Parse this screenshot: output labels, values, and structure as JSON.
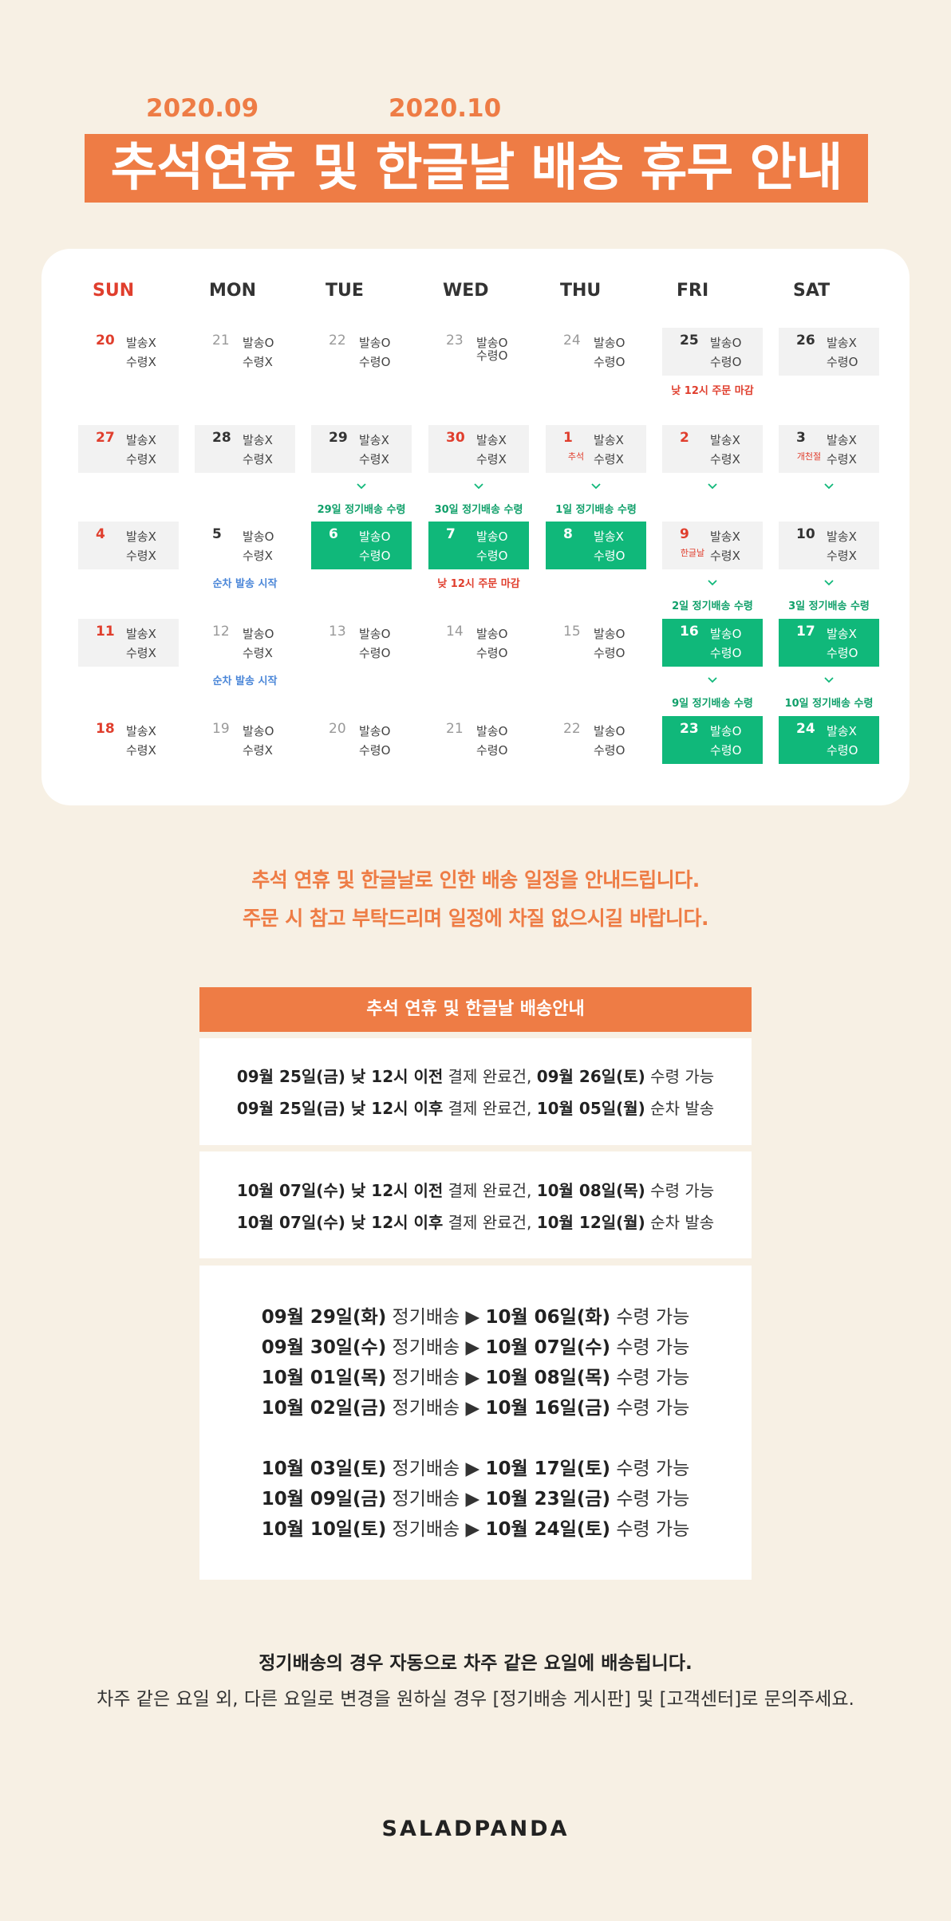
{
  "header": {
    "month_left": "2020.09",
    "month_right": "2020.10",
    "title": "추석연휴 및 한글날 배송 휴무 안내"
  },
  "calendar": {
    "weekdays": [
      "SUN",
      "MON",
      "TUE",
      "WED",
      "THU",
      "FRI",
      "SAT"
    ],
    "cells": [
      {
        "day": "20",
        "l1": "발송X",
        "l2": "수령X"
      },
      {
        "day": "21",
        "l1": "발송O",
        "l2": "수령X"
      },
      {
        "day": "22",
        "l1": "발송O",
        "l2": "수령O"
      },
      {
        "day": "23",
        "l1": "발송O",
        "l2": "수령O"
      },
      {
        "day": "24",
        "l1": "발송O",
        "l2": "수령O"
      },
      {
        "day": "25",
        "l1": "발송O",
        "l2": "수령O"
      },
      {
        "day": "26",
        "l1": "발송X",
        "l2": "수령O"
      },
      {
        "day": "27",
        "l1": "발송X",
        "l2": "수령X"
      },
      {
        "day": "28",
        "l1": "발송X",
        "l2": "수령X"
      },
      {
        "day": "29",
        "l1": "발송X",
        "l2": "수령X"
      },
      {
        "day": "30",
        "l1": "발송X",
        "l2": "수령X"
      },
      {
        "day": "1",
        "sub": "추석",
        "l1": "발송X",
        "l2": "수령X"
      },
      {
        "day": "2",
        "l1": "발송X",
        "l2": "수령X"
      },
      {
        "day": "3",
        "sub": "개천절",
        "l1": "발송X",
        "l2": "수령X"
      },
      {
        "day": "4",
        "l1": "발송X",
        "l2": "수령X"
      },
      {
        "day": "5",
        "l1": "발송O",
        "l2": "수령X"
      },
      {
        "day": "6",
        "l1": "발송O",
        "l2": "수령O"
      },
      {
        "day": "7",
        "l1": "발송O",
        "l2": "수령O"
      },
      {
        "day": "8",
        "l1": "발송X",
        "l2": "수령O"
      },
      {
        "day": "9",
        "sub": "한글날",
        "l1": "발송X",
        "l2": "수령X"
      },
      {
        "day": "10",
        "l1": "발송X",
        "l2": "수령X"
      },
      {
        "day": "11",
        "l1": "발송X",
        "l2": "수령X"
      },
      {
        "day": "12",
        "l1": "발송O",
        "l2": "수령X"
      },
      {
        "day": "13",
        "l1": "발송O",
        "l2": "수령O"
      },
      {
        "day": "14",
        "l1": "발송O",
        "l2": "수령O"
      },
      {
        "day": "15",
        "l1": "발송O",
        "l2": "수령O"
      },
      {
        "day": "16",
        "l1": "발송O",
        "l2": "수령O"
      },
      {
        "day": "17",
        "l1": "발송X",
        "l2": "수령O"
      },
      {
        "day": "18",
        "l1": "발송X",
        "l2": "수령X"
      },
      {
        "day": "19",
        "l1": "발송O",
        "l2": "수령X"
      },
      {
        "day": "20",
        "l1": "발송O",
        "l2": "수령O"
      },
      {
        "day": "21",
        "l1": "발송O",
        "l2": "수령O"
      },
      {
        "day": "22",
        "l1": "발송O",
        "l2": "수령O"
      },
      {
        "day": "23",
        "l1": "발송O",
        "l2": "수령O"
      },
      {
        "day": "24",
        "l1": "발송X",
        "l2": "수령O"
      }
    ],
    "notes": {
      "fri25_cutoff": "낮 12시 주문 마감",
      "reg_29": "29일 정기배송 수령",
      "reg_30": "30일 정기배송 수령",
      "reg_1": "1일 정기배송 수령",
      "mon5_start": "순차 발송 시작",
      "wed7_cutoff": "낮 12시 주문 마감",
      "reg_2": "2일 정기배송 수령",
      "reg_3": "3일 정기배송 수령",
      "mon12_start": "순차 발송 시작",
      "reg_9": "9일 정기배송 수령",
      "reg_10": "10일 정기배송 수령"
    }
  },
  "intro": {
    "line1": "추석 연휴 및 한글날로 인한 배송 일정을 안내드립니다.",
    "line2": "주문 시 참고 부탁드리며 일정에 차질 없으시길 바랍니다."
  },
  "info": {
    "heading": "추석 연휴 및 한글날 배송안내",
    "b1": [
      {
        "a": "09월 25일(금) 낮 12시 이전",
        "b": " 결제 완료건, ",
        "c": "09월 26일(토)",
        "d": " 수령 가능"
      },
      {
        "a": "09월 25일(금) 낮 12시 이후",
        "b": " 결제 완료건, ",
        "c": "10월 05일(월)",
        "d": " 순차 발송"
      }
    ],
    "b2": [
      {
        "a": "10월 07일(수) 낮 12시 이전",
        "b": " 결제 완료건, ",
        "c": "10월 08일(목)",
        "d": " 수령 가능"
      },
      {
        "a": "10월 07일(수) 낮 12시 이후",
        "b": " 결제 완료건, ",
        "c": "10월 12일(월)",
        "d": " 순차 발송"
      }
    ],
    "b3": [
      {
        "a": "09월 29일(화)",
        "b": " 정기배송 ▶ ",
        "c": "10월 06일(화)",
        "d": " 수령 가능"
      },
      {
        "a": "09월 30일(수)",
        "b": " 정기배송 ▶ ",
        "c": "10월 07일(수)",
        "d": " 수령 가능"
      },
      {
        "a": "10월 01일(목)",
        "b": " 정기배송 ▶ ",
        "c": "10월 08일(목)",
        "d": " 수령 가능"
      },
      {
        "a": "10월 02일(금)",
        "b": " 정기배송 ▶ ",
        "c": "10월 16일(금)",
        "d": " 수령 가능"
      },
      {
        "a": "10월 03일(토)",
        "b": " 정기배송 ▶ ",
        "c": "10월 17일(토)",
        "d": " 수령 가능"
      },
      {
        "a": "10월 09일(금)",
        "b": " 정기배송 ▶ ",
        "c": "10월 23일(금)",
        "d": " 수령 가능"
      },
      {
        "a": "10월 10일(토)",
        "b": " 정기배송 ▶ ",
        "c": "10월 24일(토)",
        "d": " 수령 가능"
      }
    ]
  },
  "footer": {
    "note_bold": "정기배송의 경우 자동으로 차주 같은 요일에 배송됩니다.",
    "note": "차주 같은 요일 외, 다른 요일로 변경을 원하실 경우 [정기배송 게시판] 및 [고객센터]로 문의주세요.",
    "brand": "SALADPANDA"
  },
  "colors": {
    "accent": "#ee7c45",
    "green": "#10b87a",
    "red": "#e03e2d",
    "blue": "#4a86d8",
    "background": "#f7f0e4"
  }
}
